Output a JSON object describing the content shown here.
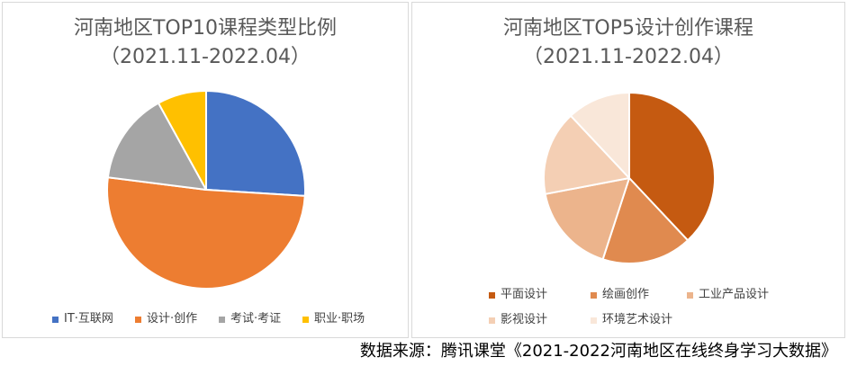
{
  "charts": [
    {
      "title": "河南地区TOP10课程类型比例",
      "subtitle": "（2021.11-2022.04）"
    },
    {
      "title": "河南地区TOP5设计创作课程",
      "subtitle": "（2021.11-2022.04）"
    }
  ],
  "chart_data": [
    {
      "type": "pie",
      "title": "河南地区TOP10课程类型比例",
      "subtitle": "（2021.11-2022.04）",
      "legend_position": "bottom",
      "start_angle_deg": 0,
      "direction": "clockwise",
      "slices": [
        {
          "label": "IT·互联网",
          "value": 26,
          "color": "#4472c4"
        },
        {
          "label": "设计·创作",
          "value": 51,
          "color": "#ed7d31"
        },
        {
          "label": "考试·考证",
          "value": 15,
          "color": "#a5a5a5"
        },
        {
          "label": "职业·职场",
          "value": 8,
          "color": "#ffc000"
        }
      ]
    },
    {
      "type": "pie",
      "title": "河南地区TOP5设计创作课程",
      "subtitle": "（2021.11-2022.04）",
      "legend_position": "bottom",
      "start_angle_deg": 0,
      "direction": "clockwise",
      "slices": [
        {
          "label": "平面设计",
          "value": 38,
          "color": "#c55a11"
        },
        {
          "label": "绘画创作",
          "value": 17,
          "color": "#e08a4f"
        },
        {
          "label": "工业产品设计",
          "value": 17,
          "color": "#ecb48c"
        },
        {
          "label": "影视设计",
          "value": 16,
          "color": "#f4cfb4"
        },
        {
          "label": "环境艺术设计",
          "value": 12,
          "color": "#f9e7d9"
        }
      ]
    }
  ],
  "footer": {
    "source_text": "数据来源：腾讯课堂《2021-2022河南地区在线终身学习大数据》"
  }
}
